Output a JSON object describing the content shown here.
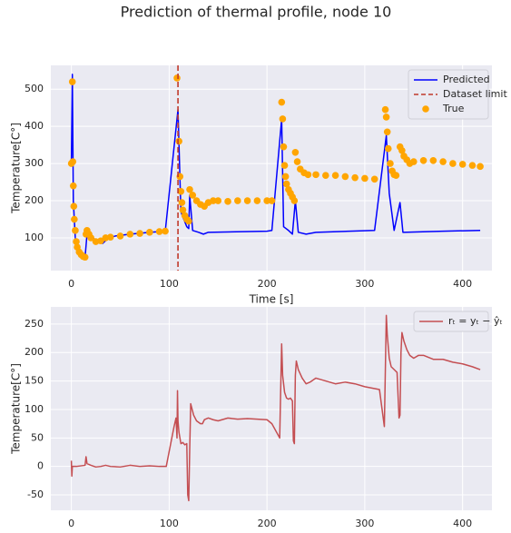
{
  "title": "Prediction of thermal profile, node 10",
  "chart_data": [
    {
      "type": "line",
      "xlabel": "Time [s]",
      "ylabel": "Temperature[C°]",
      "xlim": [
        -21,
        430
      ],
      "ylim": [
        12,
        564
      ],
      "xticks": [
        0,
        100,
        200,
        300,
        400
      ],
      "yticks": [
        100,
        200,
        300,
        400,
        500
      ],
      "grid": true,
      "legend": "upper right",
      "series": [
        {
          "name": "Predicted",
          "color": "#0000ff",
          "x": [
            0,
            1,
            2,
            4,
            6,
            10,
            14,
            16,
            22,
            28,
            32,
            38,
            45,
            60,
            80,
            96,
            109,
            112,
            118,
            120,
            121,
            124,
            130,
            135,
            140,
            200,
            205,
            215,
            217,
            222,
            226,
            229,
            232,
            240,
            250,
            310,
            322,
            325,
            330,
            336,
            339,
            380,
            418
          ],
          "values": [
            300,
            540,
            200,
            100,
            70,
            55,
            48,
            110,
            100,
            90,
            85,
            100,
            105,
            110,
            115,
            118,
            445,
            170,
            130,
            125,
            215,
            120,
            115,
            110,
            115,
            118,
            120,
            420,
            130,
            120,
            110,
            200,
            115,
            110,
            115,
            120,
            375,
            220,
            120,
            195,
            115,
            118,
            120
          ]
        },
        {
          "name": "True",
          "type": "scatter",
          "color": "#ffa500",
          "x": [
            0,
            1,
            1.5,
            2,
            2.5,
            3,
            4,
            5,
            6,
            8,
            10,
            12,
            14,
            15,
            16,
            18,
            20,
            25,
            30,
            35,
            40,
            50,
            60,
            70,
            80,
            90,
            96,
            108,
            110,
            111,
            112,
            113,
            114,
            116,
            118,
            120,
            121,
            124,
            128,
            132,
            136,
            140,
            145,
            150,
            160,
            170,
            180,
            190,
            200,
            205,
            215,
            216,
            217,
            218,
            219,
            220,
            222,
            224,
            226,
            228,
            229,
            231,
            234,
            238,
            242,
            250,
            260,
            270,
            280,
            290,
            300,
            310,
            321,
            322,
            323,
            324,
            326,
            328,
            330,
            332,
            336,
            338,
            340,
            343,
            346,
            350,
            360,
            370,
            380,
            390,
            400,
            410,
            418
          ],
          "values": [
            300,
            520,
            305,
            240,
            185,
            150,
            120,
            90,
            75,
            62,
            55,
            50,
            48,
            110,
            120,
            110,
            100,
            90,
            92,
            100,
            102,
            105,
            110,
            112,
            115,
            117,
            118,
            530,
            360,
            265,
            225,
            195,
            175,
            160,
            150,
            145,
            230,
            215,
            200,
            190,
            185,
            195,
            200,
            200,
            198,
            200,
            200,
            200,
            200,
            200,
            465,
            420,
            345,
            295,
            265,
            245,
            230,
            220,
            210,
            200,
            330,
            305,
            285,
            275,
            270,
            270,
            268,
            268,
            265,
            262,
            260,
            258,
            445,
            425,
            385,
            340,
            300,
            280,
            270,
            268,
            345,
            335,
            320,
            310,
            300,
            305,
            308,
            308,
            305,
            300,
            298,
            295,
            292
          ]
        }
      ],
      "vlines": [
        {
          "name": "Dataset limit",
          "x": 109,
          "color": "#c0392b",
          "style": "dashed"
        }
      ]
    },
    {
      "type": "line",
      "ylabel": "Temperature[C°]",
      "xlim": [
        -21,
        430
      ],
      "ylim": [
        -77,
        280
      ],
      "xticks": [
        0,
        100,
        200,
        300,
        400
      ],
      "yticks": [
        -50,
        0,
        50,
        100,
        150,
        200,
        250
      ],
      "grid": true,
      "legend": "upper right",
      "series": [
        {
          "name": "rₜ = yₜ − ŷₜ",
          "color": "#c44e52",
          "x": [
            0,
            0.5,
            1,
            5,
            14,
            15,
            16,
            20,
            25,
            30,
            35,
            40,
            50,
            60,
            70,
            80,
            90,
            97,
            105,
            107,
            108,
            108.5,
            109,
            110,
            112,
            114,
            116,
            118,
            119,
            120,
            121,
            122,
            125,
            128,
            132,
            134,
            136,
            140,
            145,
            150,
            160,
            170,
            180,
            190,
            200,
            205,
            213,
            215,
            216,
            218,
            220,
            222,
            224,
            226,
            227,
            228,
            229,
            230,
            232,
            236,
            240,
            244,
            250,
            260,
            270,
            280,
            290,
            300,
            315,
            320,
            322,
            323,
            325,
            327,
            330,
            333,
            335,
            336,
            337,
            338,
            340,
            343,
            346,
            350,
            355,
            360,
            370,
            380,
            390,
            400,
            410,
            418
          ],
          "values": [
            10,
            -17,
            0,
            0,
            2,
            17,
            5,
            2,
            -1,
            0,
            2,
            0,
            -1,
            2,
            0,
            1,
            0,
            0,
            70,
            85,
            50,
            133,
            80,
            60,
            40,
            42,
            38,
            40,
            -50,
            -60,
            30,
            110,
            90,
            80,
            75,
            75,
            82,
            85,
            82,
            80,
            85,
            83,
            84,
            83,
            82,
            75,
            50,
            215,
            160,
            130,
            120,
            118,
            120,
            115,
            45,
            40,
            160,
            185,
            170,
            155,
            145,
            148,
            155,
            150,
            145,
            148,
            145,
            140,
            135,
            70,
            265,
            230,
            190,
            175,
            170,
            165,
            85,
            90,
            200,
            235,
            220,
            205,
            195,
            190,
            195,
            195,
            188,
            188,
            183,
            180,
            175,
            170
          ]
        }
      ]
    }
  ]
}
